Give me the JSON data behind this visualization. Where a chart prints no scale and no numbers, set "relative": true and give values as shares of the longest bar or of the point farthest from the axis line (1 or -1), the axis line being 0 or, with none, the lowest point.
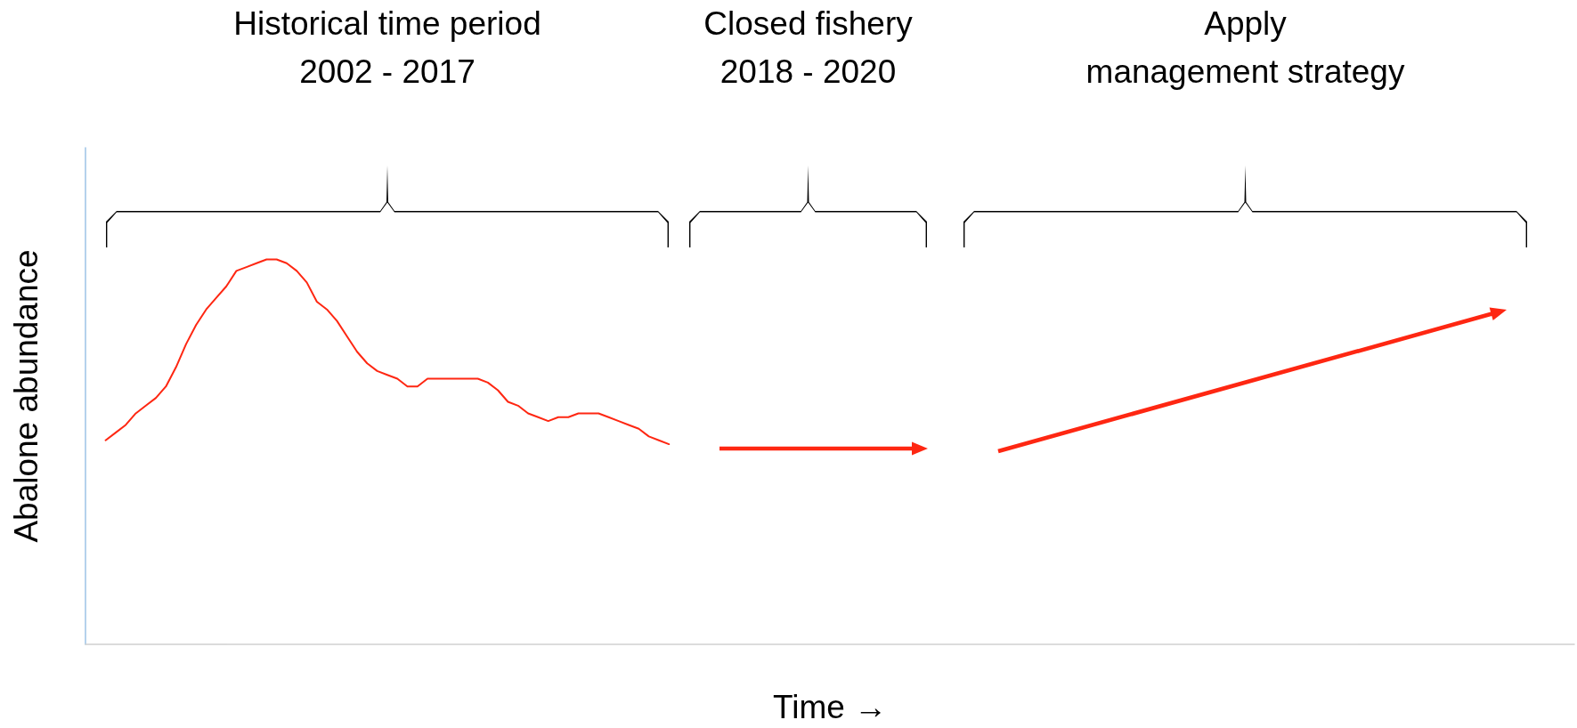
{
  "chart_data": {
    "type": "line",
    "relative": true,
    "xlabel": "Time →",
    "ylabel": "Abalone abundance",
    "marker": "none",
    "line_style": "solid",
    "annotations": [
      "Historical time period\n2002 - 2017",
      "Closed fishery\n2018 - 2020",
      "Apply\nmanagement strategy"
    ],
    "categories": [
      null,
      null,
      null,
      null,
      null,
      null,
      null,
      null,
      null,
      null,
      null,
      null,
      null,
      null,
      null,
      null,
      null,
      null,
      null,
      null,
      null,
      null,
      null,
      null,
      null,
      null,
      null,
      null,
      null,
      null,
      null,
      null,
      null,
      null,
      null,
      null,
      null,
      null,
      null,
      null,
      null,
      null,
      null,
      null,
      null,
      null,
      null,
      null,
      null,
      null,
      null,
      null,
      null,
      null,
      null,
      null,
      null,
      null,
      null,
      null,
      null,
      null,
      null,
      null,
      null,
      null,
      null,
      null,
      null,
      null,
      null,
      null,
      null,
      null,
      null,
      null,
      null,
      null,
      null,
      null,
      null,
      null,
      null,
      null,
      null,
      null,
      null,
      null,
      null,
      null,
      null,
      null,
      null,
      null,
      null,
      null,
      null,
      null,
      null,
      null,
      null,
      null,
      null,
      null,
      null,
      null,
      null,
      null,
      null,
      null,
      null,
      null,
      null,
      null,
      null,
      null,
      null,
      null,
      null,
      null,
      null,
      null,
      null,
      null,
      null,
      null,
      null,
      null,
      null,
      null,
      null,
      null,
      null,
      null,
      null,
      null,
      null,
      null,
      null,
      null,
      null,
      null,
      null,
      null,
      null,
      null,
      null,
      null,
      null
    ],
    "series": [
      {
        "color": "#fe2712",
        "values": [
          null,
          null,
          0.53,
          0.55,
          0.57,
          0.6,
          0.62,
          0.64,
          0.67,
          0.72,
          0.78,
          0.83,
          0.87,
          0.9,
          0.93,
          0.97,
          0.98,
          0.99,
          1,
          1,
          0.99,
          0.97,
          0.94,
          0.89,
          0.87,
          0.84,
          0.8,
          0.76,
          0.73,
          0.71,
          0.7,
          0.69,
          0.67,
          0.67,
          0.69,
          0.69,
          0.69,
          0.69,
          0.69,
          0.69,
          0.68,
          0.66,
          0.63,
          0.62,
          0.6,
          0.59,
          0.58,
          0.59,
          0.59,
          0.6,
          0.6,
          0.6,
          0.59,
          0.58,
          0.57,
          0.56,
          0.54,
          0.53,
          0.52,
          null,
          null,
          null,
          null,
          null,
          null,
          null,
          null,
          null,
          null,
          null,
          null,
          null,
          null,
          null,
          null,
          null,
          null,
          null,
          null,
          null,
          null,
          null,
          null,
          null,
          null,
          null,
          null,
          null,
          null,
          null,
          null,
          null,
          null,
          null,
          null,
          null,
          null,
          null,
          null,
          null,
          null,
          null,
          null,
          null,
          null,
          null,
          null,
          null,
          null,
          null,
          null,
          null,
          null,
          null,
          null,
          null,
          null,
          null,
          null,
          null,
          null,
          null,
          null,
          null,
          null,
          null,
          null,
          null,
          null,
          null,
          null,
          null,
          null,
          null,
          null,
          null,
          null,
          null,
          null,
          null,
          null,
          null,
          null,
          null,
          null,
          null,
          null,
          null,
          null
        ]
      }
    ]
  }
}
